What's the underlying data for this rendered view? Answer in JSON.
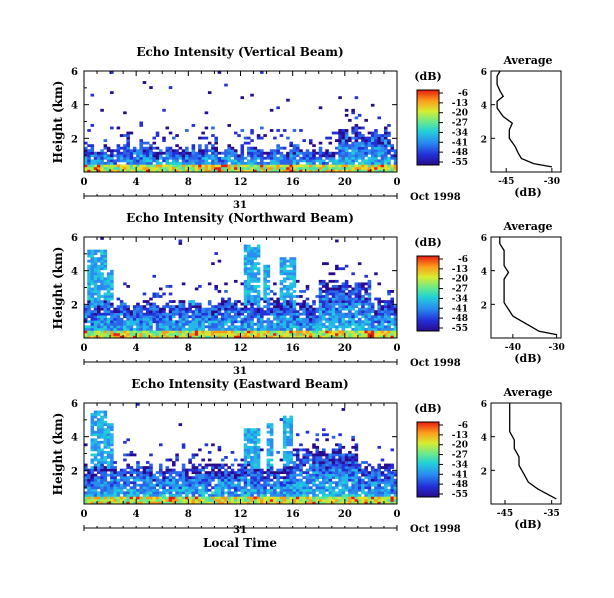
{
  "figure": {
    "xlabel": "Local Time",
    "date_label": "Oct 1998",
    "day_label": "31",
    "colorbar_unit": "(dB)",
    "colorbar_ticks": [
      "-6",
      "-13",
      "-20",
      "-27",
      "-34",
      "-41",
      "-48",
      "-55"
    ],
    "avg_title": "Average",
    "avg_xlabel": "(dB)",
    "ylabel": "Height (km)"
  },
  "chart_data": [
    {
      "type": "heatmap",
      "title": "Echo Intensity (Vertical Beam)",
      "xlabel": "Local Time",
      "ylabel": "Height (km)",
      "x_ticks": [
        "0",
        "4",
        "8",
        "12",
        "16",
        "20",
        "0"
      ],
      "xlim": [
        0,
        24
      ],
      "y_ticks": [
        "2",
        "4",
        "6"
      ],
      "ylim": [
        0,
        6
      ],
      "colorbar": {
        "unit": "(dB)",
        "range": [
          -55,
          -6
        ]
      },
      "profile": {
        "title": "Average",
        "xlabel": "(dB)",
        "x_ticks": [
          "-45",
          "-30"
        ],
        "xlim": [
          -50,
          -27
        ],
        "points": [
          {
            "h": 0.3,
            "db": -30
          },
          {
            "h": 0.5,
            "db": -36
          },
          {
            "h": 0.8,
            "db": -40
          },
          {
            "h": 1.1,
            "db": -41
          },
          {
            "h": 1.5,
            "db": -42
          },
          {
            "h": 2.0,
            "db": -44
          },
          {
            "h": 2.5,
            "db": -44
          },
          {
            "h": 2.9,
            "db": -43
          },
          {
            "h": 3.3,
            "db": -46
          },
          {
            "h": 3.8,
            "db": -48
          },
          {
            "h": 4.2,
            "db": -48
          },
          {
            "h": 4.5,
            "db": -46
          },
          {
            "h": 4.8,
            "db": -47
          },
          {
            "h": 5.2,
            "db": -48
          },
          {
            "h": 5.7,
            "db": -48
          },
          {
            "h": 6.0,
            "db": -47
          }
        ]
      }
    },
    {
      "type": "heatmap",
      "title": "Echo Intensity (Northward Beam)",
      "xlabel": "Local Time",
      "ylabel": "Height (km)",
      "x_ticks": [
        "0",
        "4",
        "8",
        "12",
        "16",
        "20",
        "0"
      ],
      "xlim": [
        0,
        24
      ],
      "y_ticks": [
        "2",
        "4",
        "6"
      ],
      "ylim": [
        0,
        6
      ],
      "colorbar": {
        "unit": "(dB)",
        "range": [
          -55,
          -6
        ]
      },
      "profile": {
        "title": "Average",
        "xlabel": "(dB)",
        "x_ticks": [
          "-40",
          "-30"
        ],
        "xlim": [
          -45,
          -29
        ],
        "points": [
          {
            "h": 0.2,
            "db": -30
          },
          {
            "h": 0.4,
            "db": -34
          },
          {
            "h": 0.7,
            "db": -36
          },
          {
            "h": 1.0,
            "db": -38
          },
          {
            "h": 1.3,
            "db": -40
          },
          {
            "h": 1.7,
            "db": -41
          },
          {
            "h": 2.1,
            "db": -42
          },
          {
            "h": 2.5,
            "db": -42
          },
          {
            "h": 3.0,
            "db": -42
          },
          {
            "h": 3.5,
            "db": -42
          },
          {
            "h": 3.9,
            "db": -41
          },
          {
            "h": 4.3,
            "db": -42
          },
          {
            "h": 4.7,
            "db": -42
          },
          {
            "h": 5.2,
            "db": -42
          },
          {
            "h": 5.6,
            "db": -43
          },
          {
            "h": 6.0,
            "db": -43
          }
        ]
      }
    },
    {
      "type": "heatmap",
      "title": "Echo Intensity (Eastward Beam)",
      "xlabel": "Local Time",
      "ylabel": "Height (km)",
      "x_ticks": [
        "0",
        "4",
        "8",
        "12",
        "16",
        "20",
        "0"
      ],
      "xlim": [
        0,
        24
      ],
      "y_ticks": [
        "2",
        "4",
        "6"
      ],
      "ylim": [
        0,
        6
      ],
      "colorbar": {
        "unit": "(dB)",
        "range": [
          -55,
          -6
        ]
      },
      "profile": {
        "title": "Average",
        "xlabel": "(dB)",
        "x_ticks": [
          "-45",
          "-35"
        ],
        "xlim": [
          -48,
          -33
        ],
        "points": [
          {
            "h": 0.3,
            "db": -34
          },
          {
            "h": 0.6,
            "db": -36
          },
          {
            "h": 0.9,
            "db": -38
          },
          {
            "h": 1.3,
            "db": -40
          },
          {
            "h": 1.8,
            "db": -41
          },
          {
            "h": 2.3,
            "db": -42
          },
          {
            "h": 2.8,
            "db": -42
          },
          {
            "h": 3.3,
            "db": -43
          },
          {
            "h": 3.8,
            "db": -43
          },
          {
            "h": 4.3,
            "db": -44
          },
          {
            "h": 4.7,
            "db": -44
          },
          {
            "h": 5.1,
            "db": -44
          },
          {
            "h": 5.5,
            "db": -44
          },
          {
            "h": 6.0,
            "db": -44
          }
        ]
      }
    }
  ]
}
